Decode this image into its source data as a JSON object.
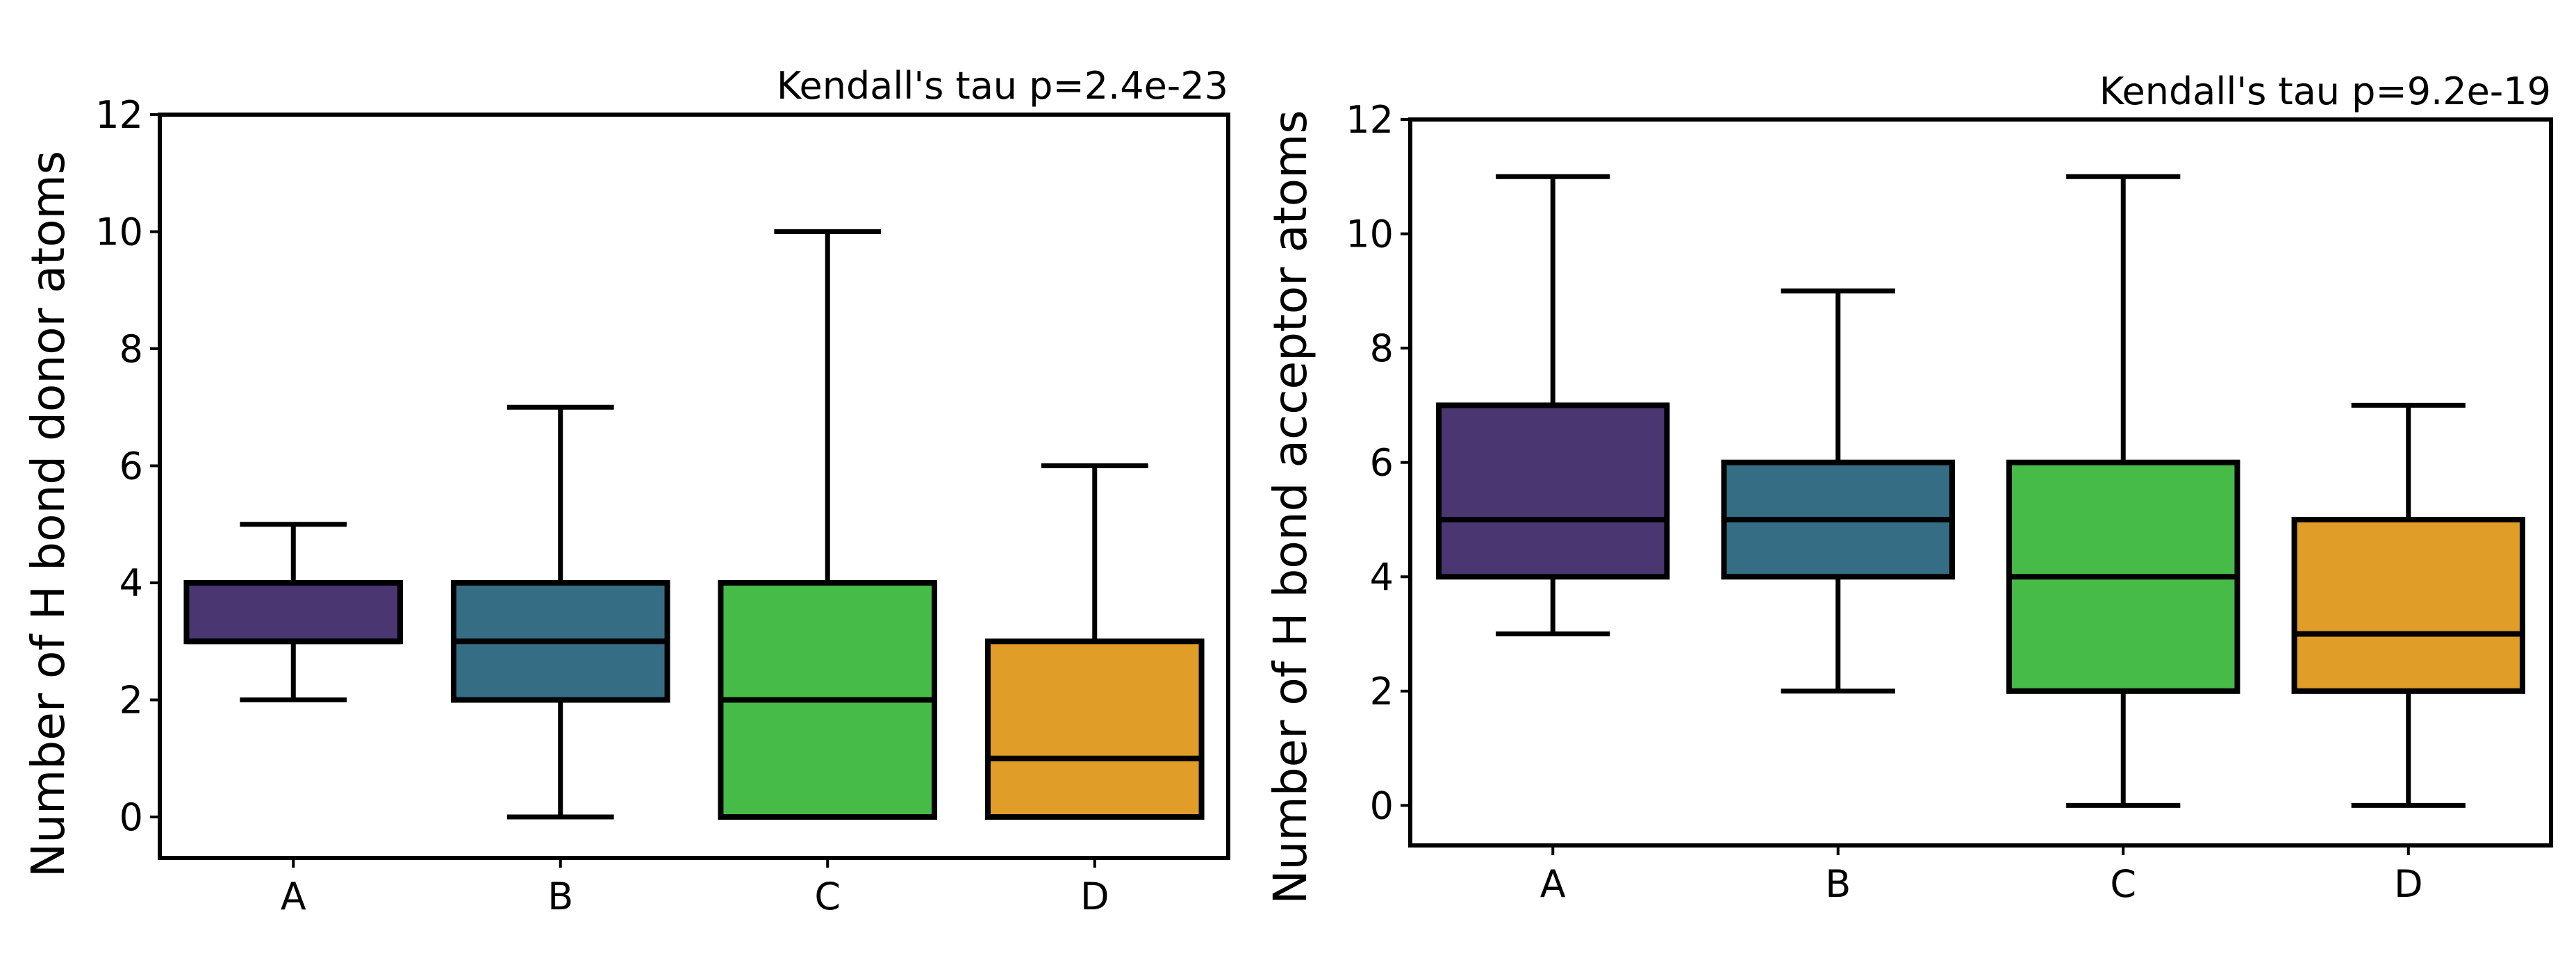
{
  "chart_data": [
    {
      "type": "box",
      "title": "",
      "annotation": "Kendall's tau p=2.4e-23",
      "xlabel": "",
      "ylabel": "Number of H bond donor atoms",
      "ylim": [
        -0.7,
        12
      ],
      "yticks": [
        0,
        2,
        4,
        6,
        8,
        10,
        12
      ],
      "yticklabels": [
        "0",
        "2",
        "4",
        "6",
        "8",
        "10",
        "12"
      ],
      "categories": [
        "A",
        "B",
        "C",
        "D"
      ],
      "colors": [
        "#4a3670",
        "#356d84",
        "#46bb48",
        "#e09d27"
      ],
      "boxes": [
        {
          "label": "A",
          "whislo": 2,
          "q1": 3,
          "med": 3,
          "q3": 4,
          "whishi": 5
        },
        {
          "label": "B",
          "whislo": 0,
          "q1": 2,
          "med": 3,
          "q3": 4,
          "whishi": 7
        },
        {
          "label": "C",
          "whislo": 0,
          "q1": 0,
          "med": 2,
          "q3": 4,
          "whishi": 10
        },
        {
          "label": "D",
          "whislo": 0,
          "q1": 0,
          "med": 1,
          "q3": 3,
          "whishi": 6
        }
      ]
    },
    {
      "type": "box",
      "title": "",
      "annotation": "Kendall's tau p=9.2e-19",
      "xlabel": "",
      "ylabel": "Number of H bond acceptor atoms",
      "ylim": [
        -0.7,
        12
      ],
      "yticks": [
        0,
        2,
        4,
        6,
        8,
        10,
        12
      ],
      "yticklabels": [
        "0",
        "2",
        "4",
        "6",
        "8",
        "10",
        "12"
      ],
      "categories": [
        "A",
        "B",
        "C",
        "D"
      ],
      "colors": [
        "#4a3670",
        "#356d84",
        "#46bb48",
        "#e09d27"
      ],
      "boxes": [
        {
          "label": "A",
          "whislo": 3,
          "q1": 4,
          "med": 5,
          "q3": 7,
          "whishi": 11
        },
        {
          "label": "B",
          "whislo": 2,
          "q1": 4,
          "med": 5,
          "q3": 6,
          "whishi": 9
        },
        {
          "label": "C",
          "whislo": 0,
          "q1": 2,
          "med": 4,
          "q3": 6,
          "whishi": 11
        },
        {
          "label": "D",
          "whislo": 0,
          "q1": 2,
          "med": 3,
          "q3": 5,
          "whishi": 7
        }
      ]
    }
  ]
}
